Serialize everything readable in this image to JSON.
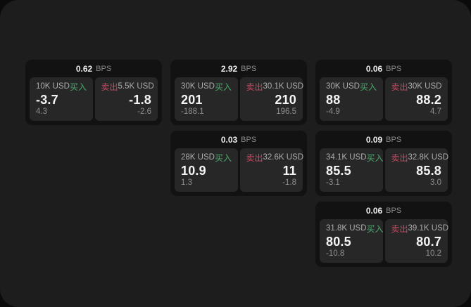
{
  "page": {
    "surface_color": "#1d1d1d",
    "backdrop_color": "#0b0b0b",
    "card_color": "#121212",
    "tile_color": "#272727"
  },
  "colors": {
    "buy_green": "#4aa86d",
    "sell_red": "#cb4a62",
    "primary_text": "#f5f5f5",
    "muted_text": "#8f8f8f"
  },
  "labels": {
    "buy": "买入",
    "sell": "卖出",
    "bps_unit": "BPS"
  },
  "cards": [
    {
      "bps": "0.62",
      "buy": {
        "amount": "10K USD",
        "price": "-3.7",
        "delta": "4.3"
      },
      "sell": {
        "amount": "5.5K USD",
        "price": "-1.8",
        "delta": "-2.6"
      }
    },
    {
      "bps": "2.92",
      "buy": {
        "amount": "30K USD",
        "price": "201",
        "delta": "-188.1"
      },
      "sell": {
        "amount": "30.1K USD",
        "price": "210",
        "delta": "196.5"
      }
    },
    {
      "bps": "0.06",
      "buy": {
        "amount": "30K USD",
        "price": "88",
        "delta": "-4.9"
      },
      "sell": {
        "amount": "30K USD",
        "price": "88.2",
        "delta": "4.7"
      }
    },
    {
      "bps": "0.03",
      "buy": {
        "amount": "28K USD",
        "price": "10.9",
        "delta": "1.3"
      },
      "sell": {
        "amount": "32.6K USD",
        "price": "11",
        "delta": "-1.8"
      }
    },
    {
      "bps": "0.09",
      "buy": {
        "amount": "34.1K USD",
        "price": "85.5",
        "delta": "-3.1"
      },
      "sell": {
        "amount": "32.8K USD",
        "price": "85.8",
        "delta": "3.0"
      }
    },
    {
      "bps": "0.06",
      "buy": {
        "amount": "31.8K USD",
        "price": "80.5",
        "delta": "-10.8"
      },
      "sell": {
        "amount": "39.1K USD",
        "price": "80.7",
        "delta": "10.2"
      }
    }
  ]
}
